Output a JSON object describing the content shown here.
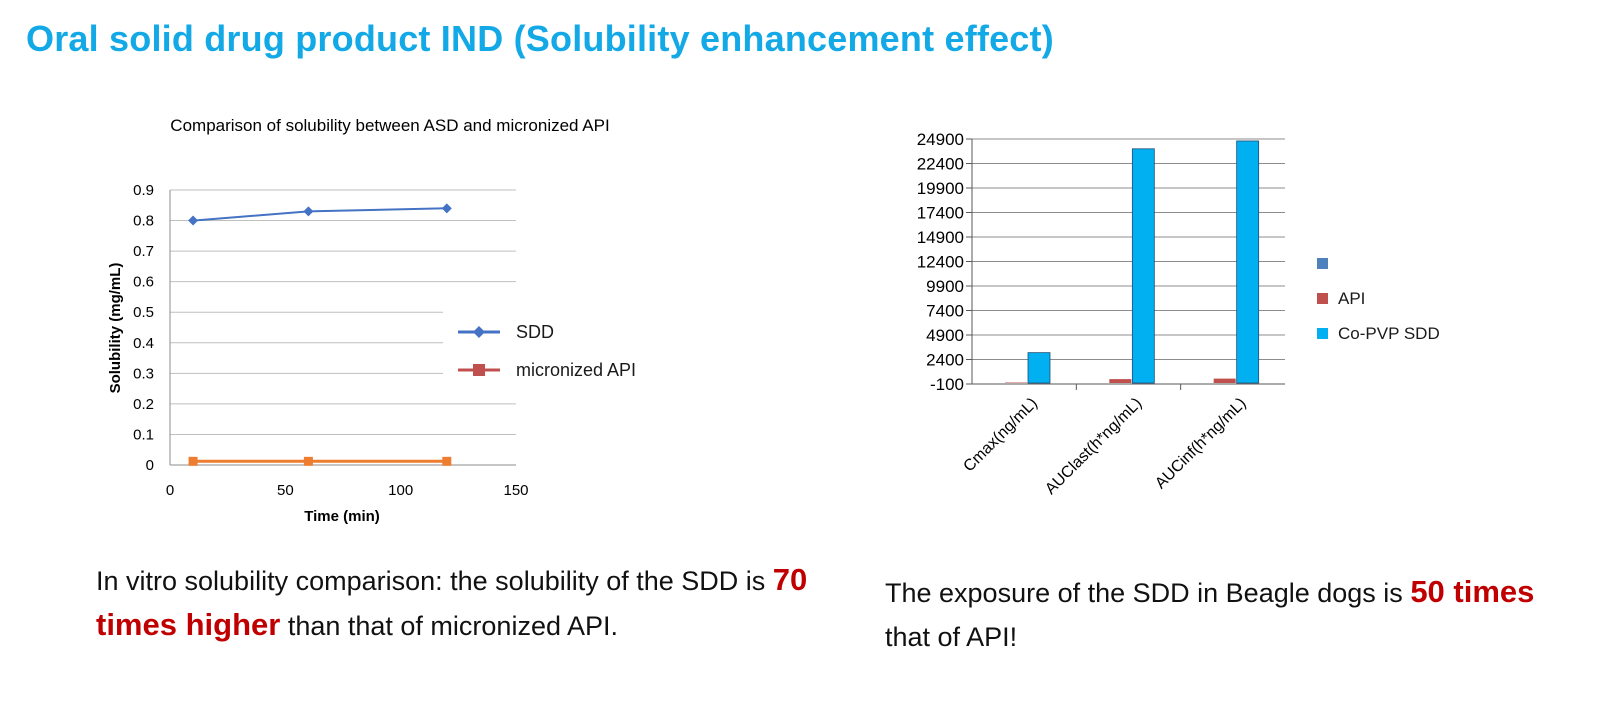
{
  "slide": {
    "title": "Oral solid drug product IND (Solubility enhancement effect)",
    "title_color": "#12A9E6"
  },
  "chart_data": [
    {
      "type": "line",
      "title": "Comparison of solubility between ASD and micronized API",
      "xlabel": "Time (min)",
      "ylabel": "Solubility (mg/mL)",
      "xlim": [
        0,
        150
      ],
      "ylim": [
        0,
        0.9
      ],
      "xticks": [
        "0",
        "50",
        "100",
        "150"
      ],
      "yticks": [
        "0",
        "0.1",
        "0.2",
        "0.3",
        "0.4",
        "0.5",
        "0.6",
        "0.7",
        "0.8",
        "0.9"
      ],
      "grid": "horizontal",
      "legend_position": "right",
      "series": [
        {
          "name": "SDD",
          "color": "#4472C4",
          "marker": "diamond",
          "x": [
            10,
            60,
            120
          ],
          "y": [
            0.8,
            0.83,
            0.84
          ]
        },
        {
          "name": "micronized API",
          "color": "#ED7D31",
          "legend_color": "#C0504D",
          "marker": "square",
          "x": [
            10,
            60,
            120
          ],
          "y": [
            0.012,
            0.012,
            0.012
          ]
        }
      ]
    },
    {
      "type": "bar",
      "categories": [
        "Cmax(ng/mL)",
        "AUClast(h*ng/mL)",
        "AUCinf(h*ng/mL)"
      ],
      "ylim": [
        -100,
        24900
      ],
      "yticks": [
        "24900",
        "22400",
        "19900",
        "17400",
        "14900",
        "12400",
        "9900",
        "7400",
        "4900",
        "2400",
        "-100"
      ],
      "grid": "horizontal",
      "legend_position": "right",
      "series": [
        {
          "name": "",
          "color": "#4F81BD",
          "values": [
            0,
            0,
            0
          ]
        },
        {
          "name": "API",
          "color": "#C0504D",
          "values": [
            50,
            400,
            450
          ]
        },
        {
          "name": "Co-PVP SDD",
          "color": "#00B0F0",
          "values": [
            3100,
            23900,
            24700
          ]
        }
      ]
    }
  ],
  "captions": {
    "left": {
      "part1": "In vitro solubility comparison: the solubility of the SDD is ",
      "highlight": "70 times higher",
      "part2": " than that of micronized API."
    },
    "right": {
      "part1": "The exposure of the SDD in Beagle dogs is ",
      "highlight": "50 times",
      "part2": " that of API!"
    },
    "highlight_color": "#C00000"
  }
}
